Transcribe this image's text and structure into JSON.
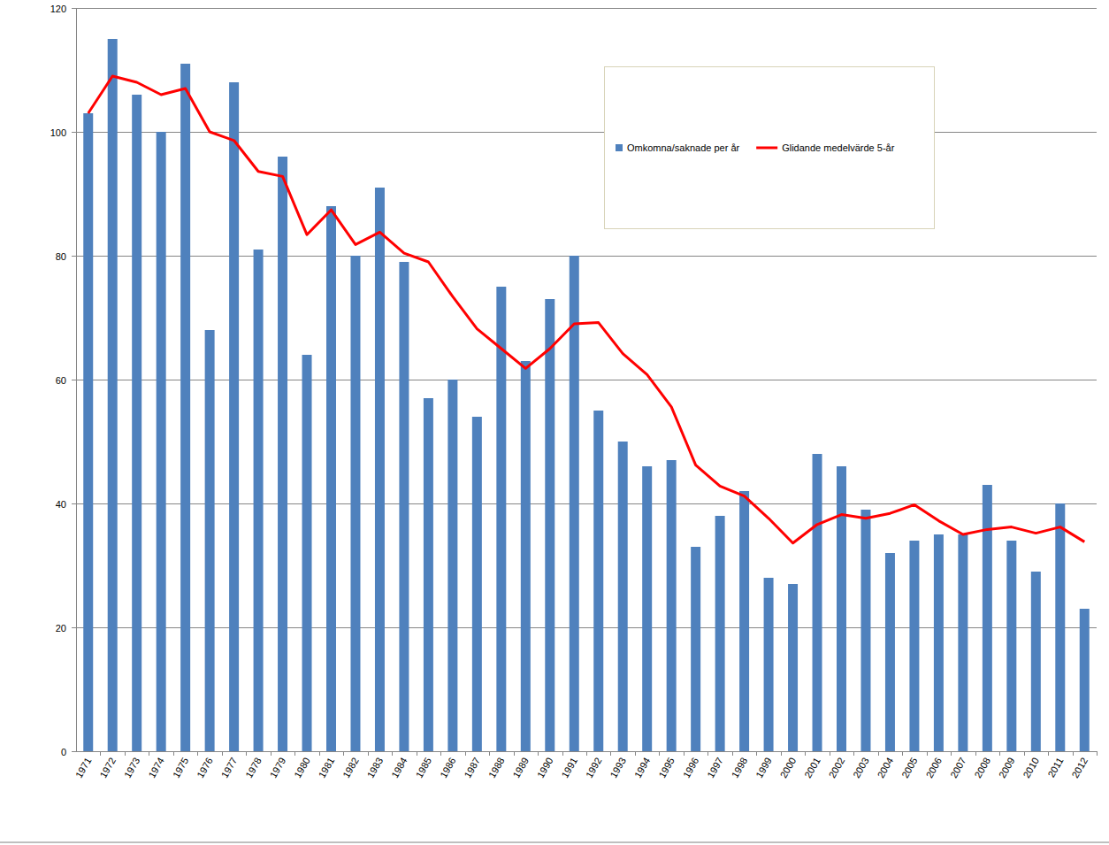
{
  "chart_data": {
    "type": "bar",
    "categories": [
      "1971",
      "1972",
      "1973",
      "1974",
      "1975",
      "1976",
      "1977",
      "1978",
      "1979",
      "1980",
      "1981",
      "1982",
      "1983",
      "1984",
      "1985",
      "1986",
      "1987",
      "1988",
      "1989",
      "1990",
      "1991",
      "1992",
      "1993",
      "1994",
      "1995",
      "1996",
      "1997",
      "1998",
      "1999",
      "2000",
      "2001",
      "2002",
      "2003",
      "2004",
      "2005",
      "2006",
      "2007",
      "2008",
      "2009",
      "2010",
      "2011",
      "2012"
    ],
    "series": [
      {
        "name": "Omkomna/saknade per år",
        "type": "bar",
        "color": "#4f81bd",
        "values": [
          103,
          115,
          106,
          100,
          111,
          68,
          108,
          81,
          96,
          64,
          88,
          80,
          91,
          79,
          57,
          60,
          54,
          75,
          63,
          73,
          80,
          55,
          50,
          46,
          47,
          33,
          38,
          42,
          28,
          27,
          48,
          46,
          39,
          32,
          34,
          35,
          35,
          43,
          34,
          29,
          40,
          23
        ]
      },
      {
        "name": "Glidande medelvärde 5-år",
        "type": "line",
        "color": "#ff0000",
        "values": [
          103,
          109,
          108,
          106,
          107,
          100,
          98.6,
          93.6,
          92.8,
          83.4,
          87.4,
          81.8,
          83.8,
          80.4,
          79,
          73.4,
          68.2,
          65,
          61.8,
          65,
          69,
          69.2,
          64.2,
          60.8,
          55.6,
          46.2,
          42.8,
          41.2,
          37.6,
          33.6,
          36.6,
          38.2,
          37.6,
          38.4,
          39.8,
          37.2,
          35,
          35.8,
          36.2,
          35.2,
          36.2,
          33.8
        ]
      }
    ],
    "ylim": [
      0,
      120
    ],
    "yticks": [
      0,
      20,
      40,
      60,
      80,
      100,
      120
    ],
    "grid": true,
    "legend": "top-right"
  }
}
